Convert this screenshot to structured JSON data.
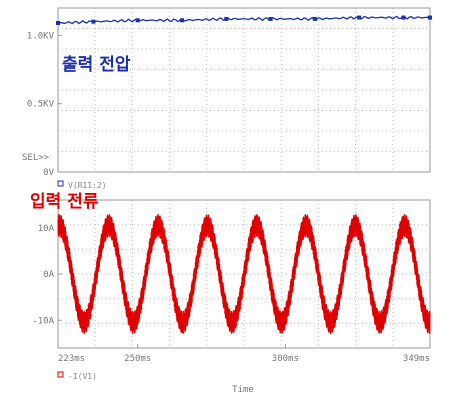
{
  "chart_data": [
    {
      "type": "line",
      "title": "",
      "annotation": "출력 전압",
      "annotation_color": "#1a2fb0",
      "xlim": [
        223,
        349
      ],
      "ylim": [
        0,
        1.2
      ],
      "y_tick_labels": [
        {
          "value": 1.0,
          "label": "1.0KV"
        },
        {
          "value": 0.5,
          "label": "0.5KV"
        },
        {
          "value": 0,
          "label": "0V"
        }
      ],
      "sel_label": "SEL>>",
      "grid": true,
      "series": [
        {
          "name": "V(R11:2)",
          "color": "#1a2fb0",
          "x": [
            223,
            235,
            250,
            265,
            280,
            295,
            310,
            325,
            340,
            349
          ],
          "y": [
            1.09,
            1.1,
            1.11,
            1.11,
            1.12,
            1.12,
            1.12,
            1.13,
            1.13,
            1.13
          ]
        }
      ]
    },
    {
      "type": "line",
      "title": "",
      "annotation": "입력 전류",
      "annotation_color": "#e00000",
      "xlabel": "Time",
      "xlim": [
        223,
        349
      ],
      "ylim": [
        -16,
        16
      ],
      "x_tick_labels": [
        {
          "value": 223,
          "label": "223ms"
        },
        {
          "value": 250,
          "label": "250ms"
        },
        {
          "value": 300,
          "label": "300ms"
        },
        {
          "value": 349,
          "label": "349ms"
        }
      ],
      "y_tick_labels": [
        {
          "value": 10,
          "label": "10A"
        },
        {
          "value": 0,
          "label": "0A"
        },
        {
          "value": -10,
          "label": "-10A"
        }
      ],
      "grid": true,
      "series": [
        {
          "name": "-I(V1)",
          "color": "#e00000",
          "waveform": "sine",
          "amplitude": 10.5,
          "ripple_amplitude": 2.5,
          "period_ms": 16.7,
          "peak_at_ms": 223.5
        }
      ]
    }
  ]
}
